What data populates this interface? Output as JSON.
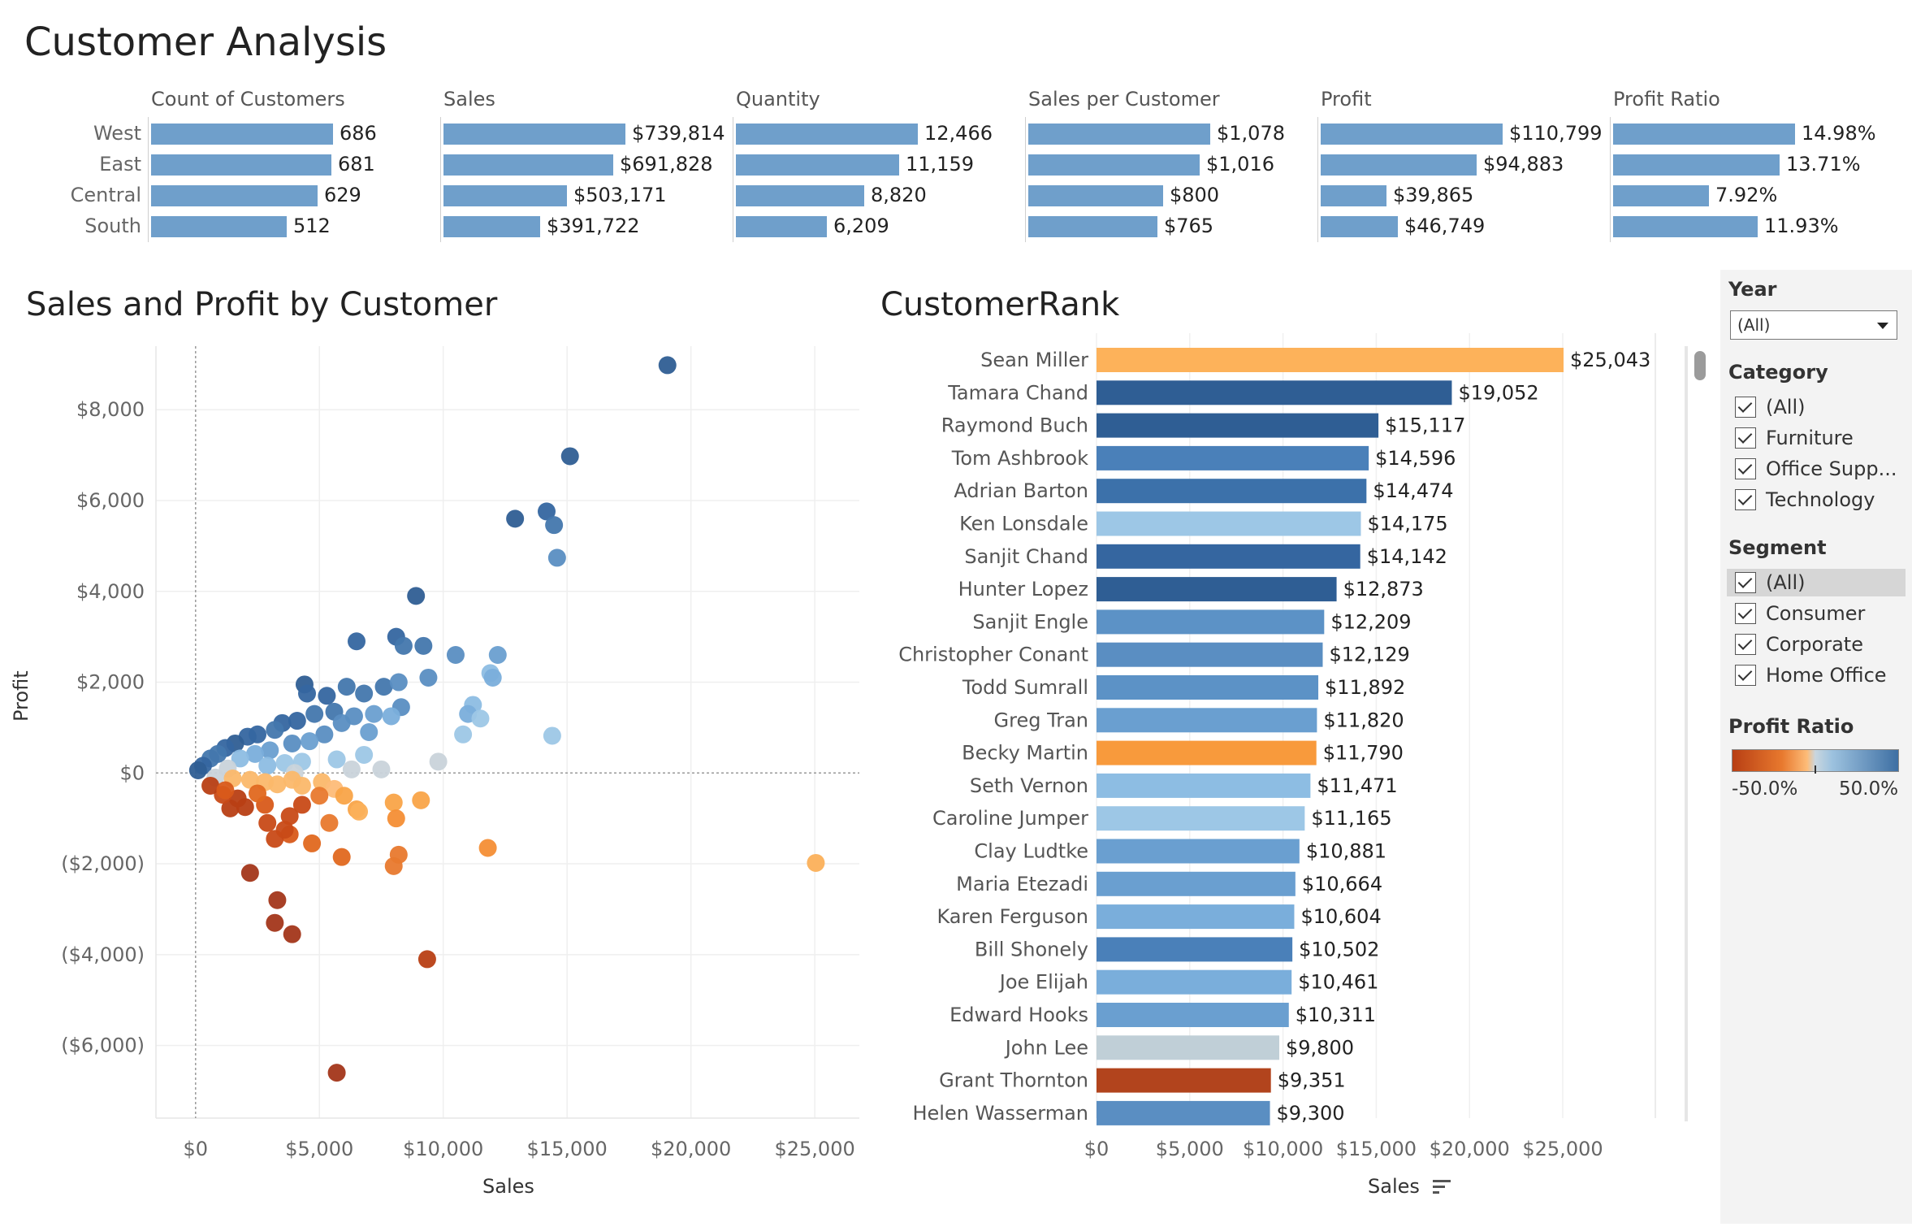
{
  "page": {
    "title": "Customer Analysis"
  },
  "kpi": {
    "regions": [
      "West",
      "East",
      "Central",
      "South"
    ],
    "panels": [
      {
        "header": "Count of Customers",
        "max": 686,
        "values": [
          686,
          681,
          629,
          512
        ],
        "labels": [
          "686",
          "681",
          "629",
          "512"
        ]
      },
      {
        "header": "Sales",
        "max": 739814,
        "values": [
          739814,
          691828,
          503171,
          391722
        ],
        "labels": [
          "$739,814",
          "$691,828",
          "$503,171",
          "$391,722"
        ]
      },
      {
        "header": "Quantity",
        "max": 12466,
        "values": [
          12466,
          11159,
          8820,
          6209
        ],
        "labels": [
          "12,466",
          "11,159",
          "8,820",
          "6,209"
        ]
      },
      {
        "header": "Sales per Customer",
        "max": 1078,
        "values": [
          1078,
          1016,
          800,
          765
        ],
        "labels": [
          "$1,078",
          "$1,016",
          "$800",
          "$765"
        ]
      },
      {
        "header": "Profit",
        "max": 110799,
        "values": [
          110799,
          94883,
          39865,
          46749
        ],
        "labels": [
          "$110,799",
          "$94,883",
          "$39,865",
          "$46,749"
        ]
      },
      {
        "header": "Profit Ratio",
        "max": 14.98,
        "values": [
          14.98,
          13.71,
          7.92,
          11.93
        ],
        "labels": [
          "14.98%",
          "13.71%",
          "7.92%",
          "11.93%"
        ]
      }
    ]
  },
  "scatter": {
    "title": "Sales and Profit by Customer",
    "xlabel": "Sales",
    "ylabel": "Profit",
    "x_ticks": [
      "$0",
      "$5,000",
      "$10,000",
      "$15,000",
      "$20,000",
      "$25,000"
    ],
    "y_ticks": [
      "$8,000",
      "$6,000",
      "$4,000",
      "$2,000",
      "$0",
      "($2,000)",
      "($4,000)",
      "($6,000)"
    ]
  },
  "chart_data": [
    {
      "type": "scatter",
      "title": "Sales and Profit by Customer",
      "xlabel": "Sales",
      "ylabel": "Profit",
      "xlim": [
        -1600,
        26800
      ],
      "ylim": [
        -7600,
        9400
      ],
      "points": [
        [
          19052,
          8981,
          "#2f5e94"
        ],
        [
          15117,
          6976,
          "#2f5e94"
        ],
        [
          12900,
          5600,
          "#2f5e94"
        ],
        [
          14174,
          5760,
          "#3566a0"
        ],
        [
          14474,
          5460,
          "#4377ad"
        ],
        [
          14596,
          4740,
          "#5a8ec2"
        ],
        [
          8900,
          3900,
          "#2f5e94"
        ],
        [
          6500,
          2900,
          "#3566a0"
        ],
        [
          8100,
          3000,
          "#3566a0"
        ],
        [
          8400,
          2800,
          "#4377ad"
        ],
        [
          9200,
          2800,
          "#4377ad"
        ],
        [
          10500,
          2600,
          "#5a8ec2"
        ],
        [
          12200,
          2600,
          "#6a9fd0"
        ],
        [
          11900,
          2200,
          "#8dbde3"
        ],
        [
          12000,
          2100,
          "#7aaedb"
        ],
        [
          11200,
          1500,
          "#8dbde3"
        ],
        [
          11000,
          1300,
          "#7aaedb"
        ],
        [
          11500,
          1200,
          "#9dc7e6"
        ],
        [
          10800,
          850,
          "#9dc7e6"
        ],
        [
          14400,
          820,
          "#9dc7e6"
        ],
        [
          4400,
          1950,
          "#2f5e94"
        ],
        [
          4500,
          1750,
          "#3566a0"
        ],
        [
          5300,
          1700,
          "#3566a0"
        ],
        [
          6100,
          1900,
          "#4377ad"
        ],
        [
          6800,
          1750,
          "#4377ad"
        ],
        [
          7600,
          1900,
          "#4377ad"
        ],
        [
          8200,
          2000,
          "#5a8ec2"
        ],
        [
          9400,
          2100,
          "#5a8ec2"
        ],
        [
          8300,
          1450,
          "#5a8ec2"
        ],
        [
          7200,
          1300,
          "#6a9fd0"
        ],
        [
          7900,
          1250,
          "#7aaedb"
        ],
        [
          5600,
          1350,
          "#4377ad"
        ],
        [
          4100,
          1150,
          "#3566a0"
        ],
        [
          3500,
          1100,
          "#3566a0"
        ],
        [
          3200,
          950,
          "#4377ad"
        ],
        [
          2500,
          850,
          "#3566a0"
        ],
        [
          2100,
          800,
          "#3566a0"
        ],
        [
          1600,
          650,
          "#2f5e94"
        ],
        [
          1200,
          550,
          "#3566a0"
        ],
        [
          900,
          420,
          "#4377ad"
        ],
        [
          600,
          320,
          "#4377ad"
        ],
        [
          300,
          160,
          "#3566a0"
        ],
        [
          100,
          60,
          "#2f5e94"
        ],
        [
          4800,
          1300,
          "#4377ad"
        ],
        [
          5900,
          1100,
          "#5a8ec2"
        ],
        [
          6400,
          1250,
          "#5a8ec2"
        ],
        [
          7000,
          900,
          "#6a9fd0"
        ],
        [
          5200,
          850,
          "#5a8ec2"
        ],
        [
          4600,
          700,
          "#6a9fd0"
        ],
        [
          3900,
          650,
          "#5a8ec2"
        ],
        [
          3000,
          500,
          "#6a9fd0"
        ],
        [
          2400,
          420,
          "#7aaedb"
        ],
        [
          1800,
          320,
          "#8dbde3"
        ],
        [
          6800,
          400,
          "#9dc7e6"
        ],
        [
          5700,
          300,
          "#9dc7e6"
        ],
        [
          4300,
          250,
          "#9dc7e6"
        ],
        [
          3600,
          220,
          "#9dc7e6"
        ],
        [
          2900,
          160,
          "#8dbde3"
        ],
        [
          7500,
          80,
          "#c9d3da"
        ],
        [
          9800,
          250,
          "#c9d3da"
        ],
        [
          4000,
          0,
          "#c9d3da"
        ],
        [
          6300,
          80,
          "#c9d3da"
        ],
        [
          1300,
          100,
          "#c9d3da"
        ],
        [
          800,
          -100,
          "#c9d3da"
        ],
        [
          1500,
          -120,
          "#fbb86a"
        ],
        [
          2200,
          -150,
          "#fbb86a"
        ],
        [
          2800,
          -200,
          "#fbb86a"
        ],
        [
          3300,
          -250,
          "#fbb86a"
        ],
        [
          4300,
          -280,
          "#fbb86a"
        ],
        [
          5100,
          -200,
          "#fbb86a"
        ],
        [
          5600,
          -350,
          "#fdbc78"
        ],
        [
          6000,
          -500,
          "#f9a448"
        ],
        [
          6500,
          -800,
          "#f9a448"
        ],
        [
          8000,
          -650,
          "#f9a448"
        ],
        [
          9100,
          -600,
          "#f9a448"
        ],
        [
          8100,
          -1000,
          "#f48e35"
        ],
        [
          11800,
          -1650,
          "#f48e35"
        ],
        [
          25043,
          -1980,
          "#fbb05a"
        ],
        [
          6600,
          -850,
          "#fbb05a"
        ],
        [
          5400,
          -1100,
          "#e8792e"
        ],
        [
          8200,
          -1800,
          "#e8792e"
        ],
        [
          8000,
          -2050,
          "#e8792e"
        ],
        [
          5900,
          -1850,
          "#e0681f"
        ],
        [
          4700,
          -1550,
          "#e0681f"
        ],
        [
          3800,
          -1350,
          "#d85a1a"
        ],
        [
          3200,
          -1450,
          "#c84a17"
        ],
        [
          3600,
          -1250,
          "#c84a17"
        ],
        [
          2900,
          -1100,
          "#c84a17"
        ],
        [
          2800,
          -700,
          "#d85a1a"
        ],
        [
          3800,
          -950,
          "#c84a17"
        ],
        [
          4300,
          -700,
          "#c84a17"
        ],
        [
          2000,
          -750,
          "#b83f14"
        ],
        [
          1400,
          -780,
          "#b83f14"
        ],
        [
          1700,
          -560,
          "#b83f14"
        ],
        [
          1100,
          -480,
          "#c84a17"
        ],
        [
          600,
          -280,
          "#b83f14"
        ],
        [
          2200,
          -2200,
          "#a3361a"
        ],
        [
          3300,
          -2800,
          "#a3361a"
        ],
        [
          3200,
          -3300,
          "#a3361a"
        ],
        [
          3900,
          -3550,
          "#a3361a"
        ],
        [
          9351,
          -4100,
          "#b83f14"
        ],
        [
          5700,
          -6600,
          "#a3361a"
        ],
        [
          1200,
          -380,
          "#d85a1a"
        ],
        [
          2500,
          -450,
          "#e0681f"
        ],
        [
          5000,
          -500,
          "#e8792e"
        ],
        [
          3900,
          -150,
          "#fbb86a"
        ]
      ]
    },
    {
      "type": "bar",
      "title": "CustomerRank",
      "xlabel": "Sales",
      "xlim": [
        0,
        25043
      ],
      "categories": [
        "Sean Miller",
        "Tamara Chand",
        "Raymond Buch",
        "Tom Ashbrook",
        "Adrian Barton",
        "Ken Lonsdale",
        "Sanjit Chand",
        "Hunter Lopez",
        "Sanjit Engle",
        "Christopher Conant",
        "Todd Sumrall",
        "Greg Tran",
        "Becky Martin",
        "Seth Vernon",
        "Caroline Jumper",
        "Clay Ludtke",
        "Maria Etezadi",
        "Karen Ferguson",
        "Bill Shonely",
        "Joe Elijah",
        "Edward Hooks",
        "John Lee",
        "Grant Thornton",
        "Helen Wasserman"
      ],
      "values": [
        25043,
        19052,
        15117,
        14596,
        14474,
        14175,
        14142,
        12873,
        12209,
        12129,
        11892,
        11820,
        11790,
        11471,
        11165,
        10881,
        10664,
        10604,
        10502,
        10461,
        10311,
        9800,
        9351,
        9300
      ],
      "labels": [
        "$25,043",
        "$19,052",
        "$15,117",
        "$14,596",
        "$14,474",
        "$14,175",
        "$14,142",
        "$12,873",
        "$12,209",
        "$12,129",
        "$11,892",
        "$11,820",
        "$11,790",
        "$11,471",
        "$11,165",
        "$10,881",
        "$10,664",
        "$10,604",
        "$10,502",
        "$10,461",
        "$10,311",
        "$9,800",
        "$9,351",
        "$9,300"
      ],
      "colors": [
        "#fdb25a",
        "#2f5e94",
        "#2f5e94",
        "#4a80b9",
        "#3c71aa",
        "#9dc7e6",
        "#3566a0",
        "#2f5e94",
        "#5c92c6",
        "#5a8ec2",
        "#5c92c6",
        "#6a9fd0",
        "#f89a3c",
        "#8dbde3",
        "#9dc7e6",
        "#6a9fd0",
        "#6a9fd0",
        "#7aaedb",
        "#4a80b9",
        "#7aaedb",
        "#6a9fd0",
        "#c0cfd7",
        "#b2441d",
        "#5a8ec2"
      ],
      "x_ticks": [
        "$0",
        "$5,000",
        "$10,000",
        "$15,000",
        "$20,000",
        "$25,000"
      ]
    }
  ],
  "filters": {
    "year": {
      "label": "Year",
      "value": "(All)"
    },
    "category": {
      "label": "Category",
      "items": [
        "(All)",
        "Furniture",
        "Office Supp...",
        "Technology"
      ]
    },
    "segment": {
      "label": "Segment",
      "items": [
        "(All)",
        "Consumer",
        "Corporate",
        "Home Office"
      ]
    },
    "profit_ratio": {
      "label": "Profit Ratio",
      "min_label": "-50.0%",
      "max_label": "50.0%"
    }
  },
  "colors": {
    "blue_bar": "#6f9fcb",
    "panel_bg": "#f3f3f3"
  },
  "icons": {
    "sort": "sort-descending-icon",
    "dropdown": "chevron-down-icon"
  }
}
